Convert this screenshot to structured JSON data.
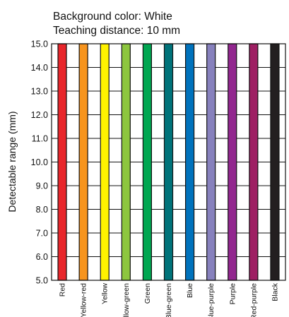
{
  "chart_data": {
    "type": "bar",
    "title_lines": [
      "Background color: White",
      "Teaching distance: 10 mm"
    ],
    "ylabel": "Detectable range (mm)",
    "xlabel": "",
    "ylim": [
      5.0,
      15.0
    ],
    "yticks": [
      "5.0",
      "6.0",
      "7.0",
      "8.0",
      "9.0",
      "10.0",
      "11.0",
      "12.0",
      "13.0",
      "14.0",
      "15.0"
    ],
    "grid": true,
    "categories": [
      "Red",
      "Yellow-red",
      "Yellow",
      "Yellow-green",
      "Green",
      "Blue-green",
      "Blue",
      "Blue-purple",
      "Purple",
      "Red-purple",
      "Black"
    ],
    "ranges": [
      [
        5.0,
        15.0
      ],
      [
        5.0,
        15.0
      ],
      [
        5.0,
        15.0
      ],
      [
        5.0,
        15.0
      ],
      [
        5.0,
        15.0
      ],
      [
        5.0,
        15.0
      ],
      [
        5.0,
        15.0
      ],
      [
        5.0,
        15.0
      ],
      [
        5.0,
        15.0
      ],
      [
        5.0,
        15.0
      ],
      [
        5.0,
        15.0
      ]
    ],
    "colors": [
      "#e8262b",
      "#f7941d",
      "#fff200",
      "#8dc63f",
      "#00a651",
      "#00737a",
      "#0072bc",
      "#8781bd",
      "#92278f",
      "#9e1f63",
      "#231f20"
    ]
  }
}
